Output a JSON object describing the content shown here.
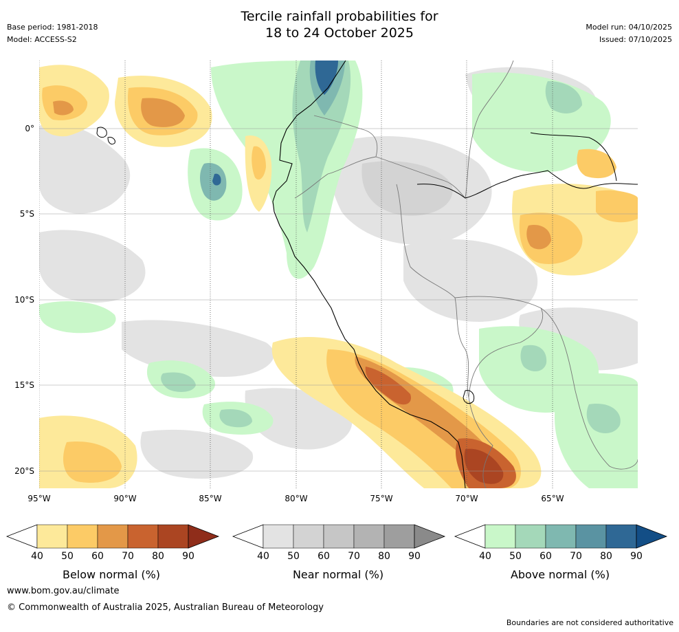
{
  "header": {
    "title_line1": "Tercile rainfall probabilities for",
    "title_line2": "18 to 24 October 2025",
    "base_period": "Base period: 1981-2018",
    "model": "Model: ACCESS-S2",
    "model_run": "Model run: 04/10/2025",
    "issued": "Issued: 07/10/2025"
  },
  "map": {
    "lat_labels": [
      "0°",
      "5°S",
      "10°S",
      "15°S",
      "20°S"
    ],
    "lon_labels": [
      "95°W",
      "90°W",
      "85°W",
      "80°W",
      "75°W",
      "70°W",
      "65°W"
    ],
    "colors": {
      "below": [
        "#fde99a",
        "#fccb66",
        "#e39848",
        "#c9632f",
        "#ab4522",
        "#8f2d1a"
      ],
      "near": [
        "#e3e3e3",
        "#d3d3d3",
        "#c6c6c6",
        "#b3b3b3",
        "#9e9e9e",
        "#8a8a8a"
      ],
      "above": [
        "#c9f7c9",
        "#a4d8b9",
        "#7fb8b0",
        "#5a93a2",
        "#2f6895",
        "#134e86"
      ]
    }
  },
  "colorbars": [
    {
      "caption": "Below normal (%)",
      "ticks": [
        "40",
        "50",
        "60",
        "70",
        "80",
        "90"
      ]
    },
    {
      "caption": "Near normal (%)",
      "ticks": [
        "40",
        "50",
        "60",
        "70",
        "80",
        "90"
      ]
    },
    {
      "caption": "Above normal (%)",
      "ticks": [
        "40",
        "50",
        "60",
        "70",
        "80",
        "90"
      ]
    }
  ],
  "footer": {
    "website": "www.bom.gov.au/climate",
    "copyright": "© Commonwealth of Australia 2025, Australian Bureau of Meteorology",
    "disclaimer": "Boundaries are not considered authoritative"
  }
}
